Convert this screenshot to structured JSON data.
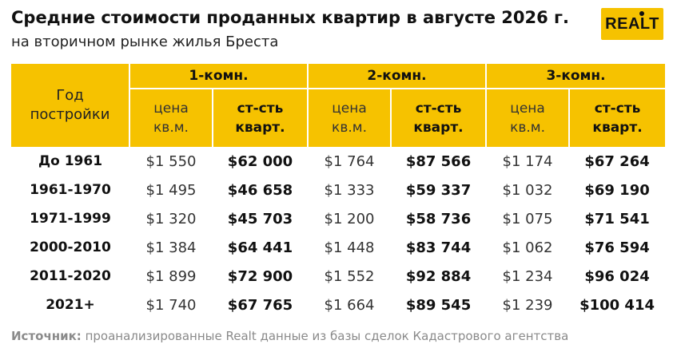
{
  "header": {
    "title": "Средние стоимости проданных квартир в августе 2026 г.",
    "subtitle": "на вторичном рынке жилья Бреста"
  },
  "logo": {
    "text": "REALT",
    "color": "#f6c200"
  },
  "table": {
    "year_header_line1": "Год",
    "year_header_line2": "постройки",
    "groups": [
      "1-комн.",
      "2-комн.",
      "3-комн."
    ],
    "price_header_line1": "цена",
    "price_header_line2": "кв.м.",
    "total_header_line1": "ст-сть",
    "total_header_line2": "кварт.",
    "rows": [
      {
        "year": "До 1961",
        "c1": [
          "$1 550",
          "$62 000"
        ],
        "c2": [
          "$1 764",
          "$87 566"
        ],
        "c3": [
          "$1 174",
          "$67 264"
        ]
      },
      {
        "year": "1961-1970",
        "c1": [
          "$1 495",
          "$46 658"
        ],
        "c2": [
          "$1 333",
          "$59 337"
        ],
        "c3": [
          "$1 032",
          "$69 190"
        ]
      },
      {
        "year": "1971-1999",
        "c1": [
          "$1 320",
          "$45 703"
        ],
        "c2": [
          "$1 200",
          "$58 736"
        ],
        "c3": [
          "$1 075",
          "$71 541"
        ]
      },
      {
        "year": "2000-2010",
        "c1": [
          "$1 384",
          "$64 441"
        ],
        "c2": [
          "$1 448",
          "$83 744"
        ],
        "c3": [
          "$1 062",
          "$76 594"
        ]
      },
      {
        "year": "2011-2020",
        "c1": [
          "$1 899",
          "$72 900"
        ],
        "c2": [
          "$1 552",
          "$92 884"
        ],
        "c3": [
          "$1 234",
          "$96 024"
        ]
      },
      {
        "year": "2021+",
        "c1": [
          "$1 740",
          "$67 765"
        ],
        "c2": [
          "$1 664",
          "$89 545"
        ],
        "c3": [
          "$1 239",
          "$100 414"
        ]
      }
    ]
  },
  "footer": {
    "source_label": "Источник:",
    "source_text": " проанализированные Realt данные из базы сделок Кадастрового агентства"
  }
}
